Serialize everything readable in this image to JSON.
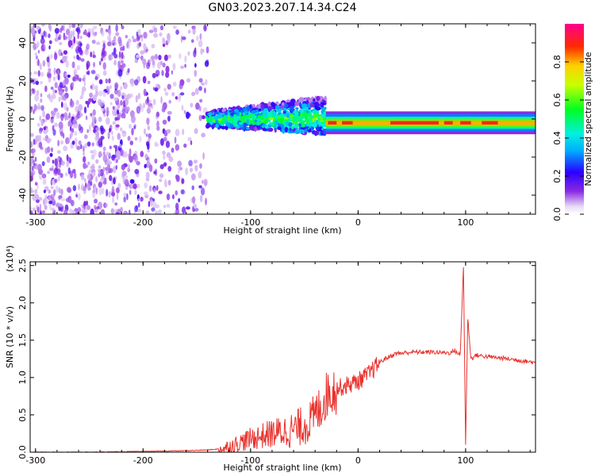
{
  "figure_title": "GN03.2023.207.14.34.C24",
  "colors": {
    "snr_line": "#e8332f",
    "axes": "#000000",
    "background": "#ffffff"
  },
  "chart_data": [
    {
      "type": "heatmap",
      "name": "spectrogram",
      "xlabel": "Height of straight line (km)",
      "ylabel": "Frequency (Hz)",
      "xlim": [
        -305,
        165
      ],
      "ylim": [
        -50,
        50
      ],
      "xticks": [
        -300,
        -200,
        -100,
        0,
        100
      ],
      "yticks": [
        -40,
        -20,
        0,
        20,
        40
      ],
      "xtick_labels": [
        "-300",
        "-200",
        "-100",
        "0",
        "100"
      ],
      "ytick_labels": [
        "-40",
        "-20",
        "0",
        "20",
        "40"
      ],
      "colorbar": {
        "label": "Normalized spectral amplitude",
        "ticks": [
          0.0,
          0.2,
          0.4,
          0.6,
          0.8
        ],
        "tick_labels": [
          "0.0",
          "0.2",
          "0.4",
          "0.6",
          "0.8"
        ],
        "range": [
          0,
          1
        ],
        "colormap": "rainbow (white-violet-blue-cyan-green-yellow-red-magenta)"
      },
      "description_regions": [
        {
          "x_from": -305,
          "x_to": -140,
          "pattern": "diffuse noise speckle",
          "amplitude": 0.1
        },
        {
          "x_from": -140,
          "x_to": -30,
          "pattern": "band around 0 Hz, width widening",
          "center": 0,
          "amplitude": 0.45
        },
        {
          "x_from": -30,
          "x_to": 165,
          "pattern": "narrow band at ~-2 Hz",
          "center": -2,
          "amplitude": 0.85
        }
      ]
    },
    {
      "type": "line",
      "name": "snr",
      "xlabel": "Height of straight line (km)",
      "ylabel": "SNR (10 * v/v)",
      "y_multiplier": "(x10⁴)",
      "xlim": [
        -305,
        165
      ],
      "ylim": [
        0,
        2.55
      ],
      "xticks": [
        -300,
        -200,
        -100,
        0,
        100
      ],
      "yticks": [
        0.0,
        0.5,
        1.0,
        1.5,
        2.0,
        2.5
      ],
      "xtick_labels": [
        "-300",
        "-200",
        "-100",
        "0",
        "100"
      ],
      "ytick_labels": [
        "0.0",
        "0.5",
        "1.0",
        "1.5",
        "2.0",
        "2.5"
      ],
      "series": [
        {
          "x": [
            -305,
            -280,
            -250,
            -200,
            -160,
            -140,
            -125,
            -115,
            -100,
            -80,
            -60,
            -45,
            -35,
            -28,
            -20,
            -10,
            0,
            10,
            20,
            25,
            35,
            50,
            70,
            85,
            90,
            95,
            98,
            100,
            102,
            105,
            110,
            120,
            140,
            165
          ],
          "y": [
            0.0,
            0.0,
            0.0,
            0.01,
            0.02,
            0.03,
            0.05,
            0.1,
            0.18,
            0.25,
            0.3,
            0.4,
            0.6,
            0.8,
            0.85,
            0.9,
            0.95,
            1.05,
            1.2,
            1.25,
            1.32,
            1.34,
            1.34,
            1.33,
            1.36,
            1.3,
            2.5,
            0.1,
            1.8,
            1.25,
            1.3,
            1.28,
            1.25,
            1.2
          ]
        }
      ]
    }
  ]
}
